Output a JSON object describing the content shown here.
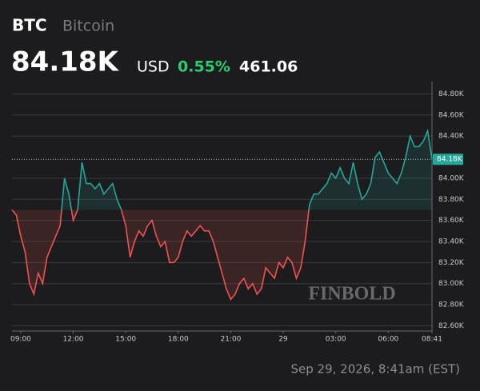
{
  "header": {
    "symbol": "BTC",
    "name": "Bitcoin",
    "price": "84.18K",
    "currency": "USD",
    "change_pct": "0.55%",
    "change_abs": "461.06"
  },
  "watermark": "FINBOLD",
  "timestamp": "Sep 29, 2026, 8:41am (EST)",
  "chart_data": {
    "type": "line",
    "categories": [
      null,
      null,
      "09:00",
      null,
      null,
      null,
      null,
      null,
      null,
      null,
      null,
      null,
      null,
      null,
      "12:00",
      null,
      null,
      null,
      null,
      null,
      null,
      null,
      null,
      null,
      null,
      null,
      "15:00",
      null,
      null,
      null,
      null,
      null,
      null,
      null,
      null,
      null,
      null,
      null,
      "18:00",
      null,
      null,
      null,
      null,
      null,
      null,
      null,
      null,
      null,
      null,
      null,
      "21:00",
      null,
      null,
      null,
      null,
      null,
      null,
      null,
      null,
      null,
      null,
      null,
      "29",
      null,
      null,
      null,
      null,
      null,
      null,
      null,
      null,
      null,
      null,
      null,
      "03:00",
      null,
      null,
      null,
      null,
      null,
      null,
      null,
      null,
      null,
      null,
      null,
      "06:00",
      null,
      null,
      null,
      null,
      null,
      null,
      null,
      null,
      null,
      "08:41"
    ],
    "series": [
      {
        "name": null,
        "color": "#26a69a",
        "down_color": "#ef5350",
        "values": [
          83700,
          83650,
          83450,
          83300,
          83000,
          82900,
          83100,
          83000,
          83250,
          83350,
          83450,
          83550,
          84000,
          83850,
          83600,
          83700,
          84150,
          83950,
          83950,
          83900,
          83950,
          83850,
          83900,
          83950,
          83800,
          83700,
          83550,
          83250,
          83400,
          83500,
          83450,
          83550,
          83600,
          83450,
          83350,
          83400,
          83200,
          83200,
          83250,
          83400,
          83500,
          83450,
          83500,
          83550,
          83500,
          83500,
          83400,
          83250,
          83100,
          82950,
          82850,
          82900,
          83000,
          83050,
          82950,
          83000,
          82900,
          82950,
          83150,
          83100,
          83050,
          83200,
          83150,
          83250,
          83200,
          83050,
          83150,
          83400,
          83750,
          83850,
          83850,
          83900,
          83950,
          84050,
          84000,
          84100,
          84000,
          83950,
          84150,
          83950,
          83800,
          83850,
          83950,
          84200,
          84250,
          84150,
          84050,
          84000,
          83950,
          84050,
          84200,
          84400,
          84300,
          84300,
          84350,
          84450,
          84180
        ]
      }
    ],
    "ylim": [
      82550,
      84880
    ],
    "yticks": [
      {
        "value": 82600,
        "label": "82.60K"
      },
      {
        "value": 82800,
        "label": "82.80K"
      },
      {
        "value": 83000,
        "label": "83.00K"
      },
      {
        "value": 83200,
        "label": "83.20K"
      },
      {
        "value": 83400,
        "label": "83.40K"
      },
      {
        "value": 83600,
        "label": "83.60K"
      },
      {
        "value": 83800,
        "label": "83.80K"
      },
      {
        "value": 84000,
        "label": "84.00K"
      },
      {
        "value": 84400,
        "label": "84.40K"
      },
      {
        "value": 84600,
        "label": "84.60K"
      },
      {
        "value": 84800,
        "label": "84.80K"
      }
    ],
    "last_price": {
      "value": 84180,
      "label": "84.18K"
    },
    "grid": true
  }
}
